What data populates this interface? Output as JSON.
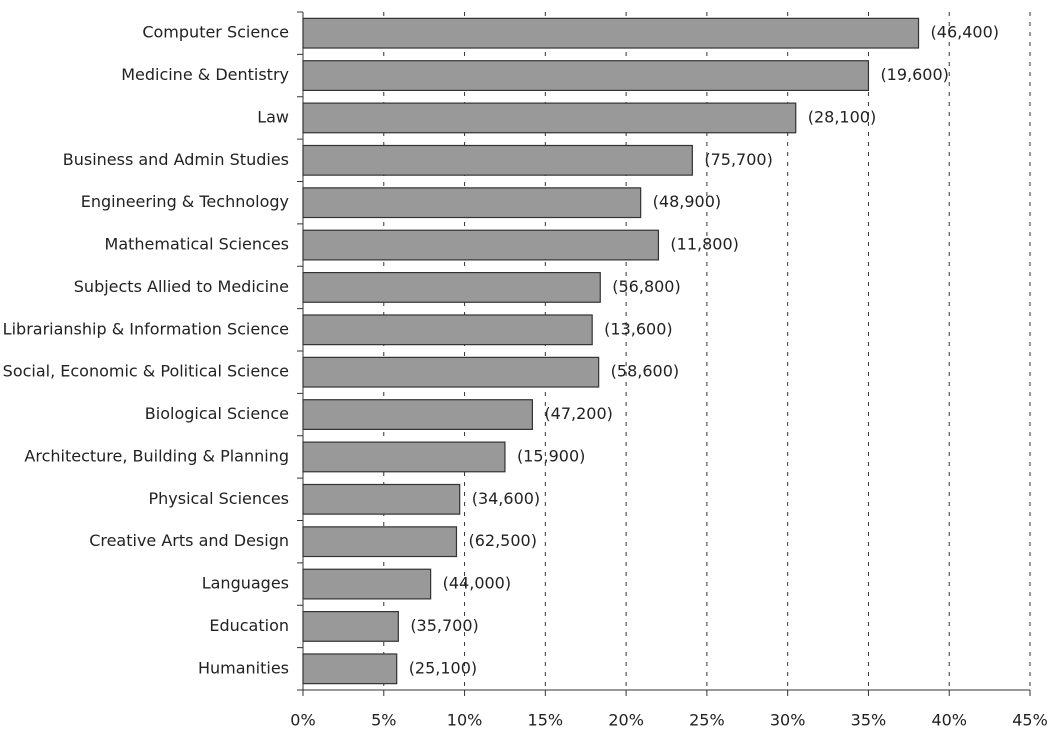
{
  "chart_data": {
    "type": "barh",
    "categories": [
      "Computer Science",
      "Medicine & Dentistry",
      "Law",
      "Business and Admin Studies",
      "Engineering & Technology",
      "Mathematical Sciences",
      "Subjects Allied to Medicine",
      "Librarianship & Information Science",
      "Social, Economic & Political Science",
      "Biological Science",
      "Architecture, Building & Planning",
      "Physical Sciences",
      "Creative Arts and Design",
      "Languages",
      "Education",
      "Humanities"
    ],
    "values": [
      38.1,
      35.0,
      30.5,
      24.1,
      20.9,
      22.0,
      18.4,
      17.9,
      18.3,
      14.2,
      12.5,
      9.7,
      9.5,
      7.9,
      5.9,
      5.8
    ],
    "count_labels": [
      "(46,400)",
      "(19,600)",
      "(28,100)",
      "(75,700)",
      "(48,900)",
      "(11,800)",
      "(56,800)",
      "(13,600)",
      "(58,600)",
      "(47,200)",
      "(15,900)",
      "(34,600)",
      "(62,500)",
      "(44,000)",
      "(35,700)",
      "(25,100)"
    ],
    "color": "#999999",
    "xlim": [
      0,
      45
    ],
    "xticks": [
      {
        "value": 0,
        "label": "0%"
      },
      {
        "value": 5,
        "label": "5%"
      },
      {
        "value": 10,
        "label": "10%"
      },
      {
        "value": 15,
        "label": "15%"
      },
      {
        "value": 20,
        "label": "20%"
      },
      {
        "value": 25,
        "label": "25%"
      },
      {
        "value": 30,
        "label": "30%"
      },
      {
        "value": 35,
        "label": "35%"
      },
      {
        "value": 40,
        "label": "40%"
      },
      {
        "value": 45,
        "label": "45%"
      }
    ],
    "grid": true
  }
}
